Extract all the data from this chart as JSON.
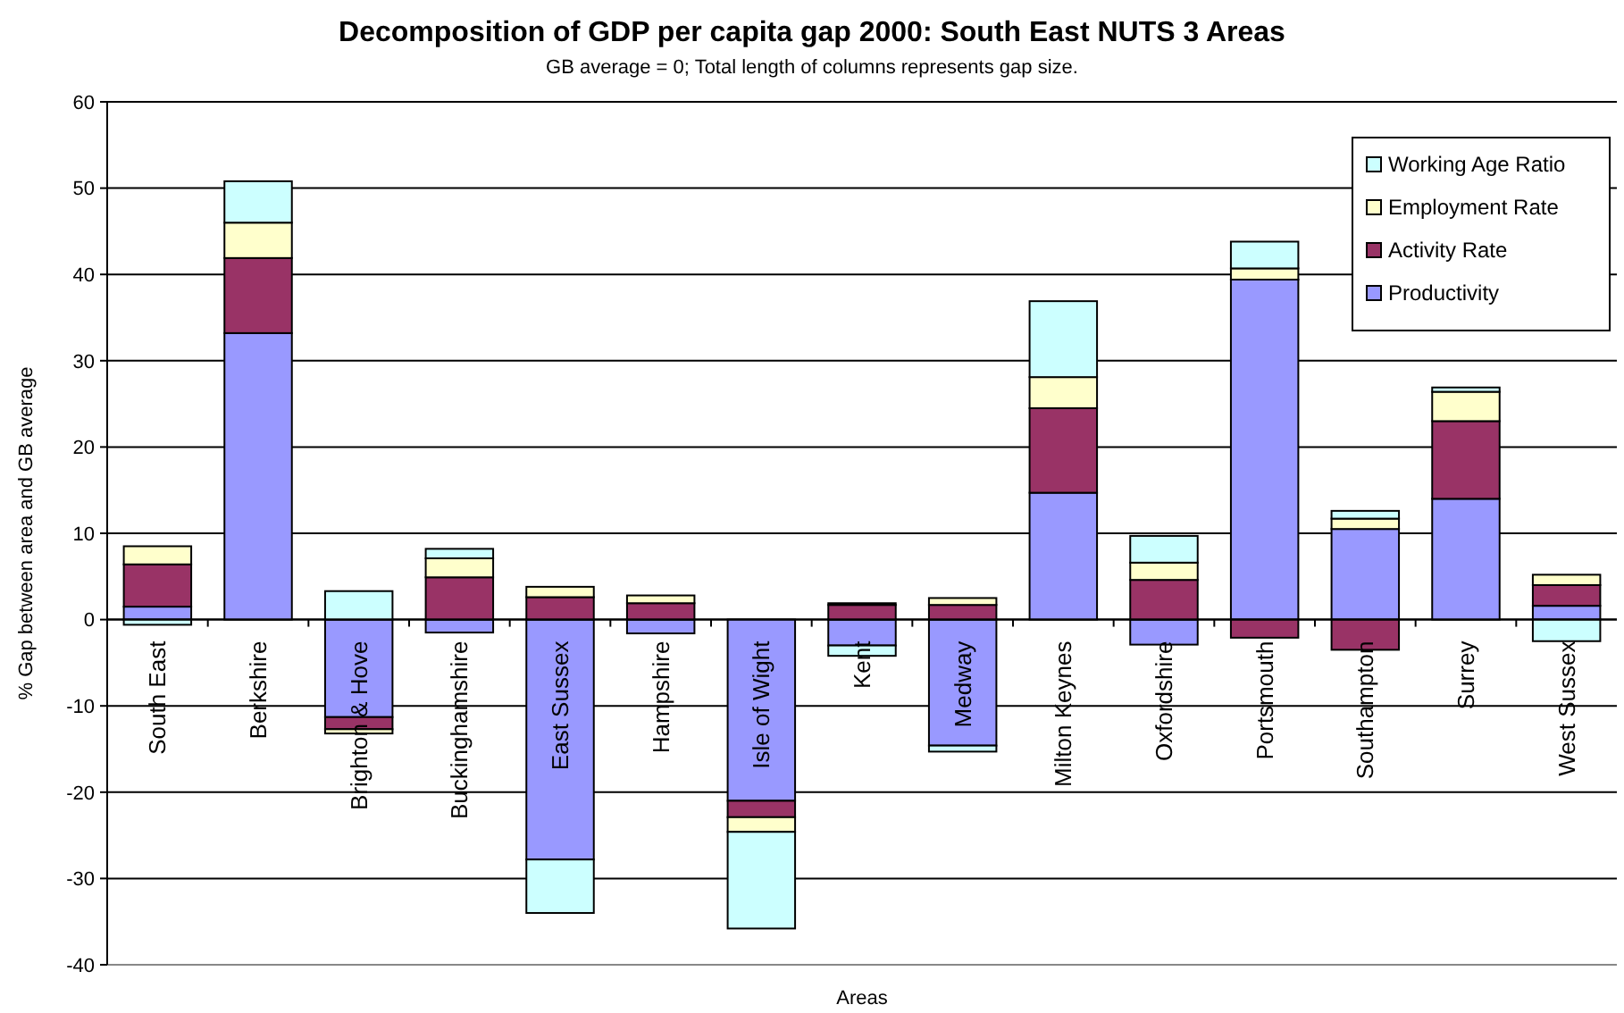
{
  "chart_data": {
    "type": "bar",
    "stacked": true,
    "title": "Decomposition of GDP per capita gap 2000: South East NUTS 3 Areas",
    "subtitle": "GB average = 0; Total length of columns represents gap size.",
    "xlabel": "Areas",
    "ylabel": "% Gap between area and GB average",
    "categories": [
      "South East",
      "Berkshire",
      "Brighton & Hove",
      "Buckinghamshire",
      "East Sussex",
      "Hampshire",
      "Isle of Wight",
      "Kent",
      "Medway",
      "Milton Keynes",
      "Oxfordshire",
      "Portsmouth",
      "Southampton",
      "Surrey",
      "West Sussex"
    ],
    "series": [
      {
        "name": "Productivity",
        "color": "#9999ff",
        "values": [
          1.5,
          33.2,
          -11.3,
          -1.5,
          -27.8,
          -1.6,
          -21.0,
          -3.0,
          -14.6,
          14.7,
          -2.9,
          39.4,
          10.5,
          14.0,
          1.6
        ]
      },
      {
        "name": "Activity Rate",
        "color": "#993366",
        "values": [
          4.9,
          8.7,
          -1.4,
          4.9,
          2.6,
          1.9,
          -1.9,
          1.7,
          1.7,
          9.8,
          4.6,
          -2.1,
          -3.5,
          9.0,
          2.4
        ]
      },
      {
        "name": "Employment Rate",
        "color": "#ffffcc",
        "values": [
          2.1,
          4.1,
          -0.5,
          2.2,
          1.2,
          0.9,
          -1.7,
          0.2,
          0.8,
          3.6,
          2.0,
          1.3,
          1.2,
          3.4,
          1.2
        ]
      },
      {
        "name": "Working Age Ratio",
        "color": "#ccffff",
        "values": [
          -0.6,
          4.8,
          3.3,
          1.1,
          -6.2,
          0,
          -11.2,
          -1.2,
          -0.7,
          8.8,
          3.1,
          3.1,
          0.9,
          0.5,
          -2.5
        ]
      }
    ],
    "ylim": [
      -40,
      60
    ],
    "yticks": [
      -40,
      -30,
      -20,
      -10,
      0,
      10,
      20,
      30,
      40,
      50,
      60
    ],
    "grid": "y",
    "legend": "top right"
  }
}
